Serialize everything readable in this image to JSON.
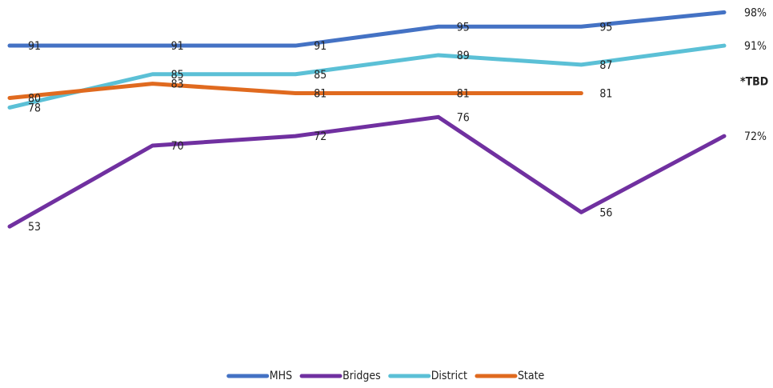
{
  "chart_data": {
    "type": "line",
    "ylim": [
      40,
      100
    ],
    "series": [
      {
        "name": "MHS",
        "color": "#4472c4",
        "values": [
          91,
          91,
          91,
          95,
          95,
          98
        ],
        "value_labels": [
          "91",
          "91",
          "91",
          "95",
          "95",
          "98%"
        ]
      },
      {
        "name": "Bridges",
        "color": "#7030a0",
        "values": [
          53,
          70,
          72,
          76,
          56,
          72
        ],
        "value_labels": [
          "53",
          "70",
          "72",
          "76",
          "56",
          "72%"
        ]
      },
      {
        "name": "District",
        "color": "#5bc0d6",
        "values": [
          78,
          85,
          85,
          89,
          87,
          91
        ],
        "value_labels": [
          "78",
          "85",
          "85",
          "89",
          "87",
          "91%"
        ]
      },
      {
        "name": "State",
        "color": "#e06a1f",
        "values": [
          80,
          83,
          81,
          81,
          81,
          null
        ],
        "value_labels": [
          "80",
          "83",
          "81",
          "81",
          "81",
          null
        ]
      }
    ],
    "annotation": "*TBD",
    "legend": "bottom"
  }
}
